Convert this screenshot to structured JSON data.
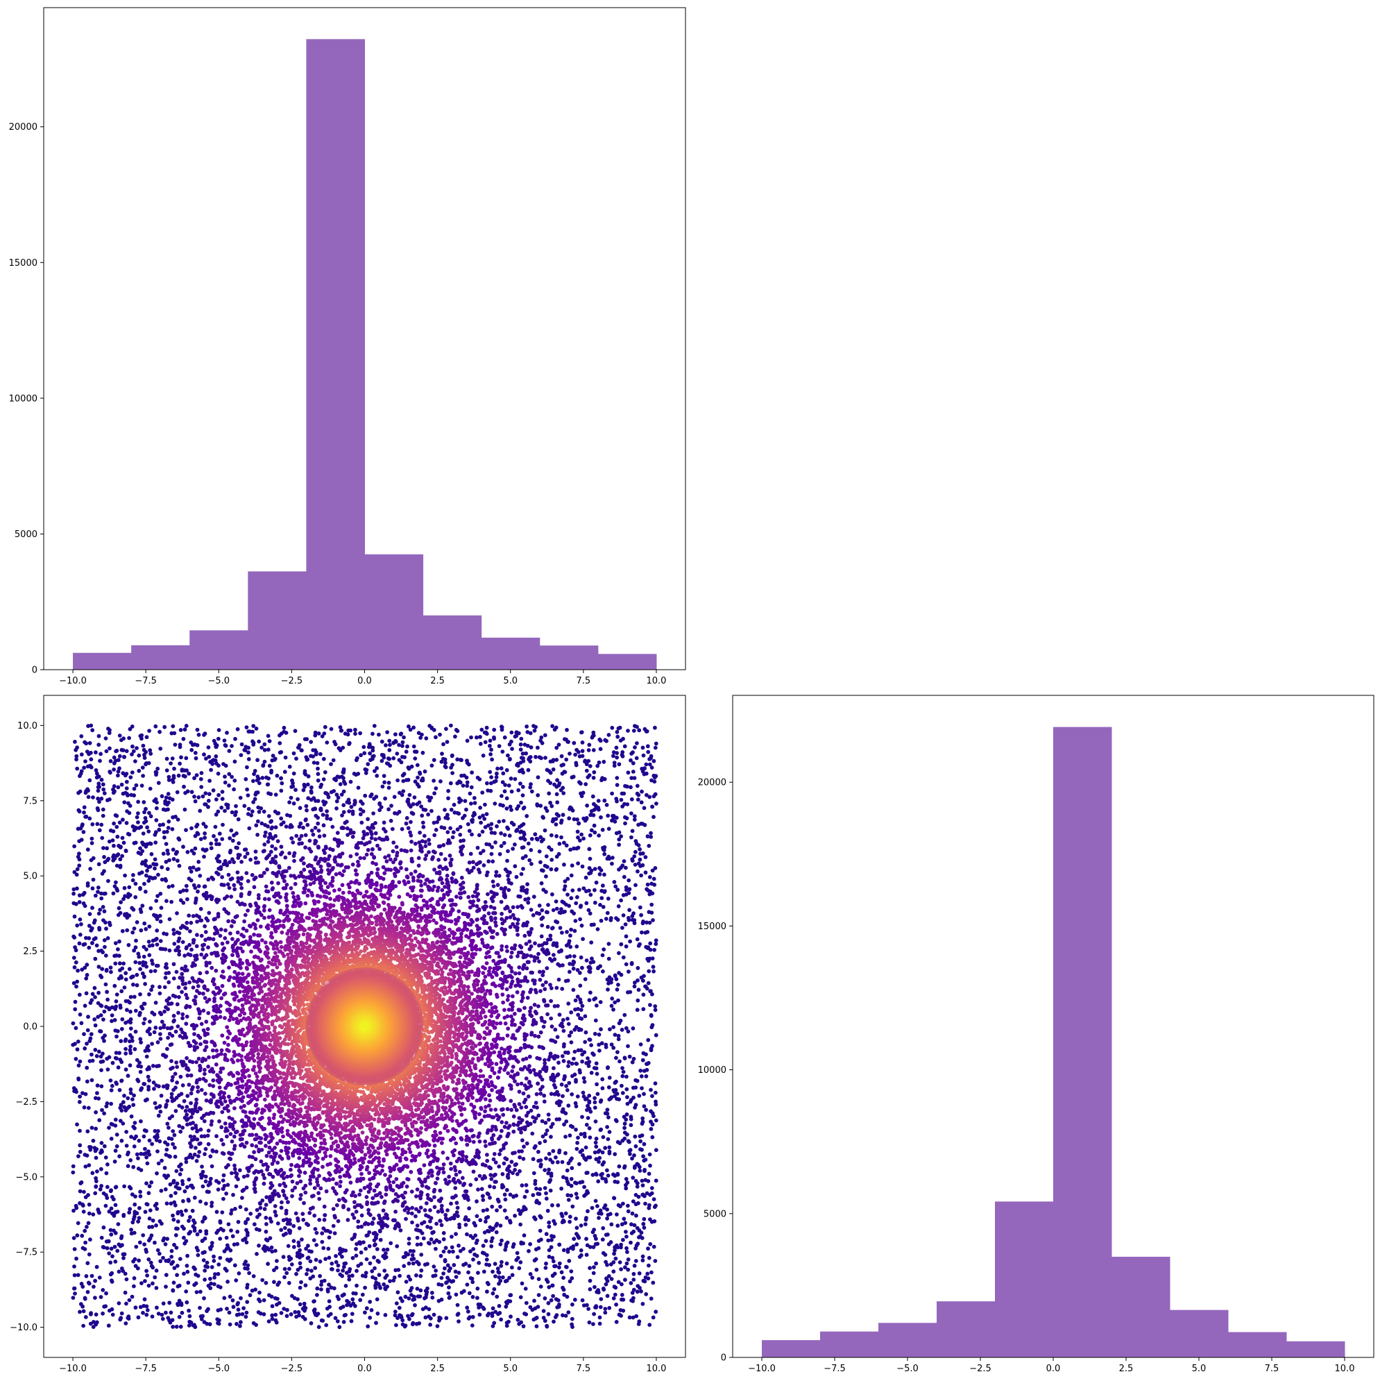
{
  "chart_data": [
    {
      "id": "top-histogram",
      "type": "bar",
      "subtype": "histogram",
      "bin_edges": [
        -10,
        -8,
        -6,
        -4,
        -2,
        0,
        2,
        4,
        6,
        8,
        10
      ],
      "values": [
        620,
        900,
        1450,
        3620,
        23230,
        4250,
        2000,
        1180,
        890,
        580
      ],
      "bar_color": "#9467bd",
      "xlim": [
        -11,
        11
      ],
      "ylim": [
        0,
        24390
      ],
      "xticks": [
        -10.0,
        -7.5,
        -5.0,
        -2.5,
        0.0,
        2.5,
        5.0,
        7.5,
        10.0
      ],
      "xtick_labels": [
        "−10.0",
        "−7.5",
        "−5.0",
        "−2.5",
        "0.0",
        "2.5",
        "5.0",
        "7.5",
        "10.0"
      ],
      "yticks": [
        0,
        5000,
        10000,
        15000,
        20000
      ],
      "ytick_labels": [
        "0",
        "5000",
        "10000",
        "15000",
        "20000"
      ],
      "title": "",
      "xlabel": "",
      "ylabel": "",
      "grid": false
    },
    {
      "id": "density-scatter",
      "type": "scatter",
      "description_of_data": "about 30000 points over [-10,10] x [-10,10], a uniform background plus a dense cluster centred near (0,0), coloured by point density",
      "xlim": [
        -11,
        11
      ],
      "ylim": [
        -11,
        11
      ],
      "colormap": "plasma",
      "colormap_stops": [
        "#0d0887",
        "#6a00a8",
        "#b12a90",
        "#e16462",
        "#fca636",
        "#f0f921"
      ],
      "density_center": [
        0,
        0
      ],
      "xticks": [
        -10.0,
        -7.5,
        -5.0,
        -2.5,
        0.0,
        2.5,
        5.0,
        7.5,
        10.0
      ],
      "xtick_labels": [
        "−10.0",
        "−7.5",
        "−5.0",
        "−2.5",
        "0.0",
        "2.5",
        "5.0",
        "7.5",
        "10.0"
      ],
      "yticks": [
        -10.0,
        -7.5,
        -5.0,
        -2.5,
        0.0,
        2.5,
        5.0,
        7.5,
        10.0
      ],
      "ytick_labels": [
        "−10.0",
        "−7.5",
        "−5.0",
        "−2.5",
        "0.0",
        "2.5",
        "5.0",
        "7.5",
        "10.0"
      ],
      "title": "",
      "xlabel": "",
      "ylabel": "",
      "grid": false
    },
    {
      "id": "right-histogram",
      "type": "bar",
      "subtype": "histogram",
      "bin_edges": [
        -10,
        -8,
        -6,
        -4,
        -2,
        0,
        2,
        4,
        6,
        8,
        10
      ],
      "values": [
        600,
        900,
        1200,
        1950,
        5420,
        21920,
        3500,
        1650,
        880,
        560
      ],
      "bar_color": "#9467bd",
      "xlim": [
        -11,
        11
      ],
      "ylim": [
        0,
        23020
      ],
      "xticks": [
        -10.0,
        -7.5,
        -5.0,
        -2.5,
        0.0,
        2.5,
        5.0,
        7.5,
        10.0
      ],
      "xtick_labels": [
        "−10.0",
        "−7.5",
        "−5.0",
        "−2.5",
        "0.0",
        "2.5",
        "5.0",
        "7.5",
        "10.0"
      ],
      "yticks": [
        0,
        5000,
        10000,
        15000,
        20000
      ],
      "ytick_labels": [
        "0",
        "5000",
        "10000",
        "15000",
        "20000"
      ],
      "title": "",
      "xlabel": "",
      "ylabel": "",
      "grid": false
    }
  ]
}
